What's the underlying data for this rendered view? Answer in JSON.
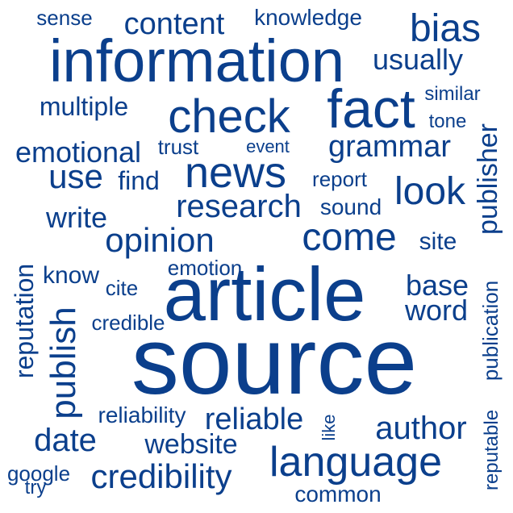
{
  "colors": {
    "background": "#ffffff",
    "word": "#0b3f8c"
  },
  "words": [
    {
      "text": "sense"
    },
    {
      "text": "content"
    },
    {
      "text": "knowledge"
    },
    {
      "text": "bias"
    },
    {
      "text": "information"
    },
    {
      "text": "usually"
    },
    {
      "text": "multiple"
    },
    {
      "text": "check"
    },
    {
      "text": "fact"
    },
    {
      "text": "similar"
    },
    {
      "text": "tone"
    },
    {
      "text": "emotional"
    },
    {
      "text": "trust"
    },
    {
      "text": "event"
    },
    {
      "text": "grammar"
    },
    {
      "text": "publisher",
      "rotated": true
    },
    {
      "text": "use"
    },
    {
      "text": "find"
    },
    {
      "text": "news"
    },
    {
      "text": "report"
    },
    {
      "text": "look"
    },
    {
      "text": "write"
    },
    {
      "text": "research"
    },
    {
      "text": "sound"
    },
    {
      "text": "opinion"
    },
    {
      "text": "come"
    },
    {
      "text": "site"
    },
    {
      "text": "emotion"
    },
    {
      "text": "know"
    },
    {
      "text": "reputation",
      "rotated": true
    },
    {
      "text": "cite"
    },
    {
      "text": "article"
    },
    {
      "text": "base"
    },
    {
      "text": "word"
    },
    {
      "text": "publish",
      "rotated": true
    },
    {
      "text": "credible"
    },
    {
      "text": "publication",
      "rotated": true
    },
    {
      "text": "source"
    },
    {
      "text": "reliability"
    },
    {
      "text": "reliable"
    },
    {
      "text": "author"
    },
    {
      "text": "like",
      "rotated": true
    },
    {
      "text": "reputable",
      "rotated": true
    },
    {
      "text": "date"
    },
    {
      "text": "website"
    },
    {
      "text": "language"
    },
    {
      "text": "google"
    },
    {
      "text": "try"
    },
    {
      "text": "credibility"
    },
    {
      "text": "common"
    }
  ]
}
